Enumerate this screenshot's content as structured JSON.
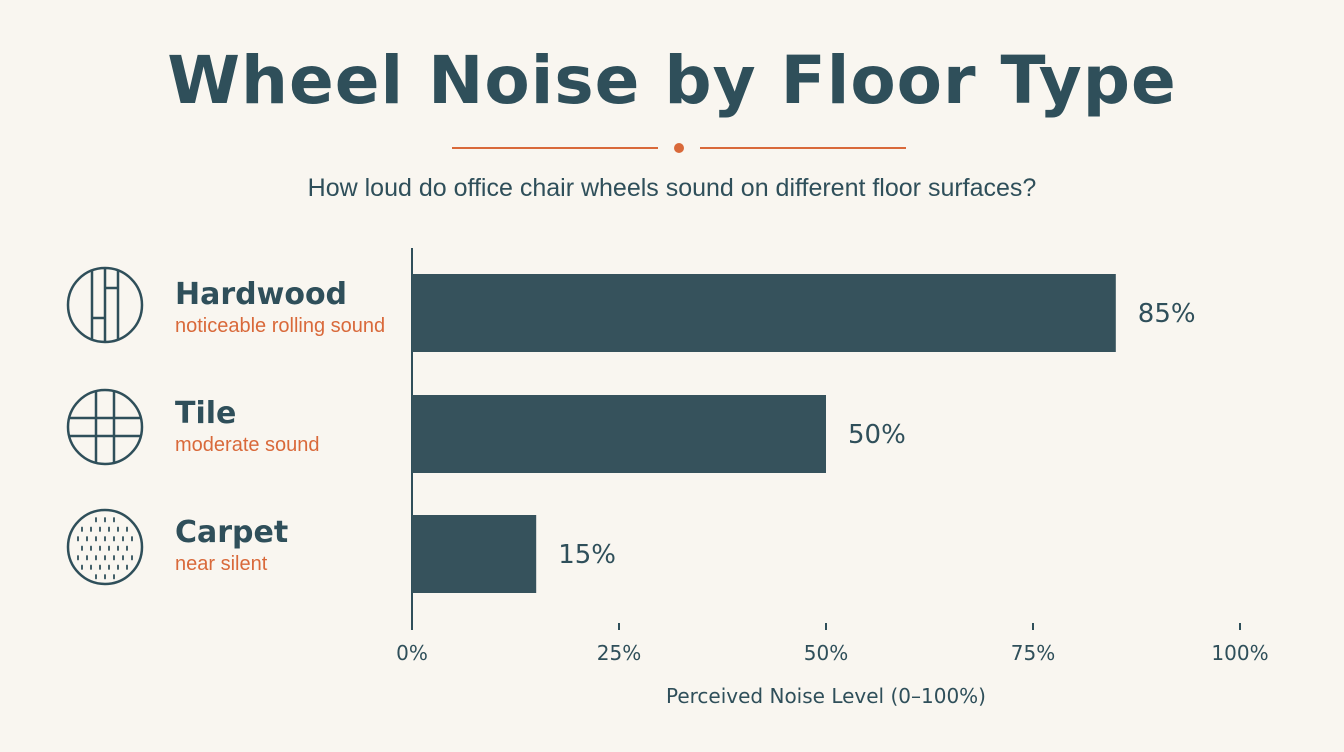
{
  "title": "Wheel Noise by Floor Type",
  "subtitle": "How loud do office chair wheels sound on different floor surfaces?",
  "colors": {
    "bar": "#36525c",
    "accent": "#d9693a",
    "text": "#2f4f5a",
    "background": "#f9f6f0"
  },
  "rows": [
    {
      "name": "Hardwood",
      "description": "noticeable rolling sound",
      "icon": "hardwood-floor-icon"
    },
    {
      "name": "Tile",
      "description": "moderate sound",
      "icon": "tile-floor-icon"
    },
    {
      "name": "Carpet",
      "description": "near silent",
      "icon": "carpet-floor-icon"
    }
  ],
  "chart_data": {
    "type": "bar",
    "orientation": "horizontal",
    "categories": [
      "Hardwood",
      "Tile",
      "Carpet"
    ],
    "values": [
      85,
      50,
      15
    ],
    "value_labels": [
      "85%",
      "50%",
      "15%"
    ],
    "xlabel": "Perceived Noise Level (0–100%)",
    "ylabel": "",
    "xlim": [
      0,
      100
    ],
    "xticks": [
      0,
      25,
      50,
      75,
      100
    ],
    "xtick_labels": [
      "0%",
      "25%",
      "50%",
      "75%",
      "100%"
    ],
    "grid": false
  }
}
